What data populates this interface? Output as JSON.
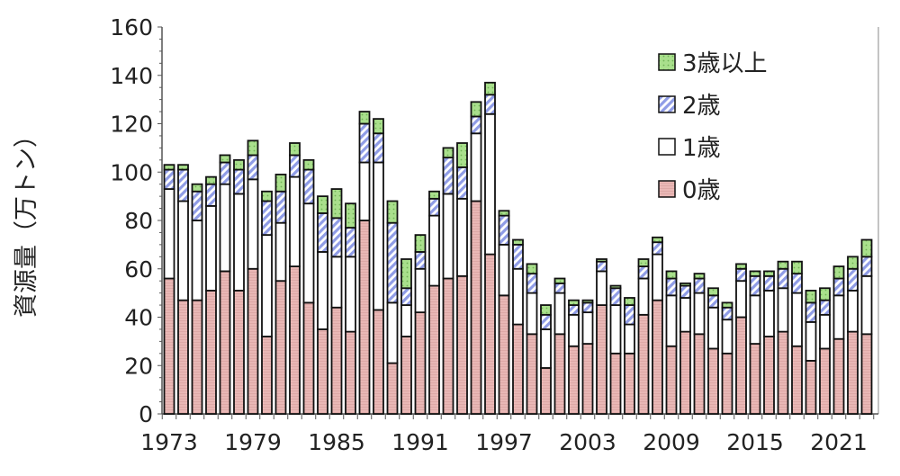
{
  "chart_data": {
    "type": "bar",
    "stacked": true,
    "title": "",
    "xlabel": "",
    "ylabel": "資源量（万トン）",
    "ylim": [
      0,
      160
    ],
    "yticks": [
      "0",
      "20",
      "40",
      "60",
      "80",
      "100",
      "120",
      "140",
      "160"
    ],
    "xtick_labels": [
      "1973",
      "1979",
      "1985",
      "1991",
      "1997",
      "2003",
      "2009",
      "2015",
      "2021"
    ],
    "legend_position": "top-right",
    "categories": [
      1973,
      1974,
      1975,
      1976,
      1977,
      1978,
      1979,
      1980,
      1981,
      1982,
      1983,
      1984,
      1985,
      1986,
      1987,
      1988,
      1989,
      1990,
      1991,
      1992,
      1993,
      1994,
      1995,
      1996,
      1997,
      1998,
      1999,
      2000,
      2001,
      2002,
      2003,
      2004,
      2005,
      2006,
      2007,
      2008,
      2009,
      2010,
      2011,
      2012,
      2013,
      2014,
      2015,
      2016,
      2017,
      2018,
      2019,
      2020,
      2021,
      2022,
      2023
    ],
    "series": [
      {
        "name": "0歳",
        "color": "#e9b7b5",
        "values": [
          56,
          47,
          47,
          51,
          59,
          51,
          60,
          32,
          55,
          61,
          46,
          35,
          44,
          34,
          80,
          43,
          21,
          32,
          42,
          53,
          56,
          57,
          88,
          66,
          49,
          37,
          33,
          19,
          33,
          28,
          29,
          45,
          25,
          25,
          41,
          47,
          28,
          34,
          33,
          27,
          25,
          40,
          29,
          32,
          34,
          28,
          22,
          27,
          31,
          34,
          33
        ]
      },
      {
        "name": "1歳",
        "color": "#ffffff",
        "values": [
          37,
          41,
          33,
          35,
          36,
          40,
          37,
          42,
          24,
          37,
          41,
          32,
          21,
          31,
          24,
          61,
          25,
          13,
          18,
          29,
          35,
          32,
          28,
          58,
          21,
          23,
          17,
          16,
          17,
          13,
          13,
          14,
          20,
          12,
          15,
          19,
          21,
          14,
          17,
          17,
          14,
          15,
          20,
          19,
          18,
          22,
          16,
          14,
          18,
          17,
          24
        ]
      },
      {
        "name": "2歳",
        "color": "#9aa6ea",
        "values": [
          8,
          13,
          12,
          9,
          9,
          10,
          10,
          14,
          13,
          9,
          14,
          16,
          16,
          12,
          16,
          12,
          33,
          7,
          7,
          7,
          15,
          13,
          7,
          8,
          12,
          10,
          8,
          6,
          4,
          4,
          4,
          4,
          7,
          8,
          5,
          5,
          7,
          5,
          6,
          5,
          5,
          5,
          8,
          6,
          8,
          8,
          8,
          6,
          7,
          9,
          8
        ]
      },
      {
        "name": "3歳以上",
        "color": "#a9df8c",
        "values": [
          2,
          2,
          3,
          3,
          3,
          4,
          6,
          4,
          7,
          5,
          4,
          7,
          12,
          10,
          5,
          6,
          9,
          12,
          7,
          3,
          4,
          10,
          6,
          5,
          2,
          2,
          4,
          4,
          2,
          2,
          1,
          1,
          1,
          3,
          3,
          2,
          3,
          1,
          2,
          3,
          2,
          2,
          2,
          2,
          3,
          5,
          5,
          5,
          5,
          5,
          7
        ]
      }
    ]
  }
}
